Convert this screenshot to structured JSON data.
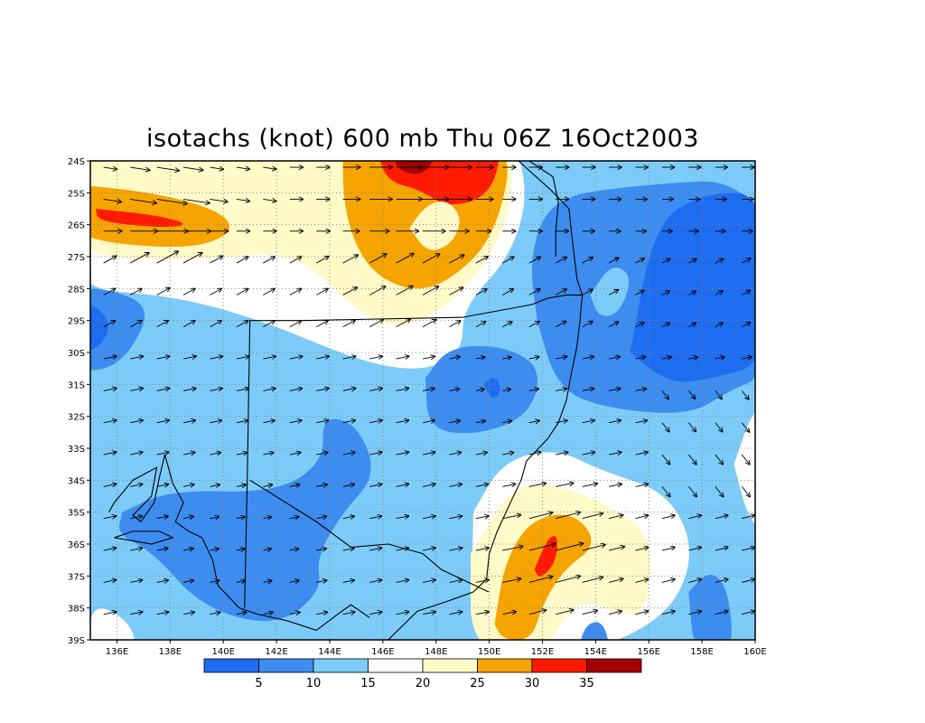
{
  "chart_data": {
    "type": "heatmap",
    "title": "isotachs (knot) 600 mb Thu 06Z 16Oct2003",
    "xlabel": "",
    "ylabel": "",
    "x_ticks": [
      "136E",
      "138E",
      "140E",
      "142E",
      "144E",
      "146E",
      "148E",
      "150E",
      "152E",
      "154E",
      "156E",
      "158E",
      "160E"
    ],
    "y_ticks": [
      "24S",
      "25S",
      "26S",
      "27S",
      "28S",
      "29S",
      "30S",
      "31S",
      "32S",
      "33S",
      "34S",
      "35S",
      "36S",
      "37S",
      "38S",
      "39S"
    ],
    "xlim": [
      135,
      160
    ],
    "ylim": [
      -39,
      -24
    ],
    "grid": true,
    "legend_position": "bottom",
    "colorbar": {
      "labels": [
        "5",
        "10",
        "15",
        "20",
        "25",
        "30",
        "35"
      ],
      "colors": [
        "#1e6cf0",
        "#3d8cf0",
        "#7ccbf8",
        "#ffffff",
        "#fffac8",
        "#f6a400",
        "#ff1a00",
        "#a50000"
      ]
    },
    "wind_speed_regions": [
      {
        "level": 30,
        "center_lon": 152,
        "center_lat": -36.2,
        "note": "max near 36S"
      },
      {
        "level": 30,
        "center_lon": 146.3,
        "center_lat": -24.7
      },
      {
        "level": 30,
        "center_lon": 137.5,
        "center_lat": -25.8
      },
      {
        "level": 5,
        "center_lon": 150.1,
        "center_lat": -31.1
      },
      {
        "level": 5,
        "center_lon": 157.5,
        "center_lat": -28.5
      },
      {
        "level": 5,
        "center_lon": 141,
        "center_lat": -36
      }
    ]
  }
}
